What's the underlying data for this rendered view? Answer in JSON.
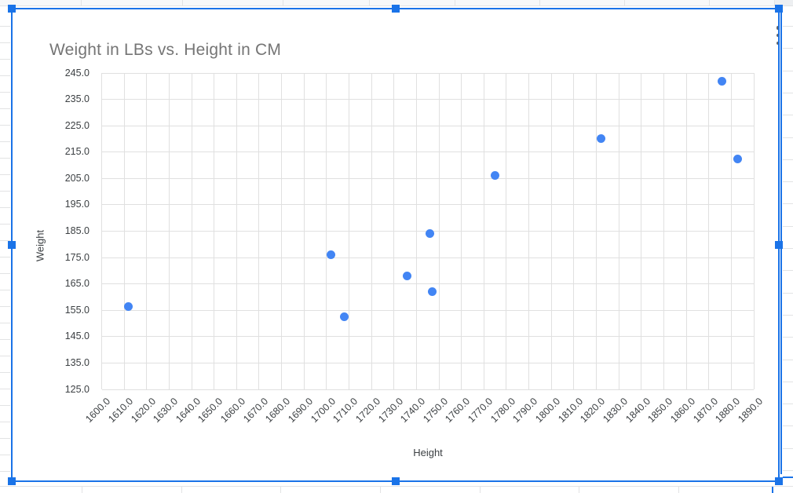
{
  "app_context": "spreadsheet-chart-selection",
  "colors": {
    "selection": "#1a73e8",
    "point": "#4285f4",
    "title_text": "#757575",
    "axis_text": "#3c4043",
    "plot_gridline": "#e0e0e0",
    "sheet_gridline": "#e2e3e4",
    "kebab_icon": "#5f6368"
  },
  "icons": {
    "chart_options": "kebab-menu-icon"
  },
  "chart_data": {
    "type": "scatter",
    "title": "Weight in LBs vs. Height in CM",
    "xlabel": "Height",
    "ylabel": "Weight",
    "xlim": [
      1600,
      1890
    ],
    "ylim": [
      125,
      245
    ],
    "x_tick_step": 10,
    "y_tick_step": 10,
    "grid": true,
    "legend": "none",
    "x_tick_labels": [
      "1600.0",
      "1610.0",
      "1620.0",
      "1630.0",
      "1640.0",
      "1650.0",
      "1660.0",
      "1670.0",
      "1680.0",
      "1690.0",
      "1700.0",
      "1710.0",
      "1720.0",
      "1730.0",
      "1740.0",
      "1750.0",
      "1760.0",
      "1770.0",
      "1780.0",
      "1790.0",
      "1800.0",
      "1810.0",
      "1820.0",
      "1830.0",
      "1840.0",
      "1850.0",
      "1860.0",
      "1870.0",
      "1880.0",
      "1890.0"
    ],
    "y_tick_labels": [
      "245.0",
      "235.0",
      "225.0",
      "215.0",
      "205.0",
      "195.0",
      "185.0",
      "175.0",
      "165.0",
      "155.0",
      "145.0",
      "135.0",
      "125.0"
    ],
    "series": [
      {
        "name": "Weight",
        "points": [
          {
            "x": 1612,
            "y": 156.5
          },
          {
            "x": 1702,
            "y": 176
          },
          {
            "x": 1708,
            "y": 152.5
          },
          {
            "x": 1736,
            "y": 168
          },
          {
            "x": 1746,
            "y": 184
          },
          {
            "x": 1747,
            "y": 162
          },
          {
            "x": 1775,
            "y": 206
          },
          {
            "x": 1822,
            "y": 220
          },
          {
            "x": 1876,
            "y": 242
          },
          {
            "x": 1883,
            "y": 212.5
          }
        ]
      }
    ]
  }
}
